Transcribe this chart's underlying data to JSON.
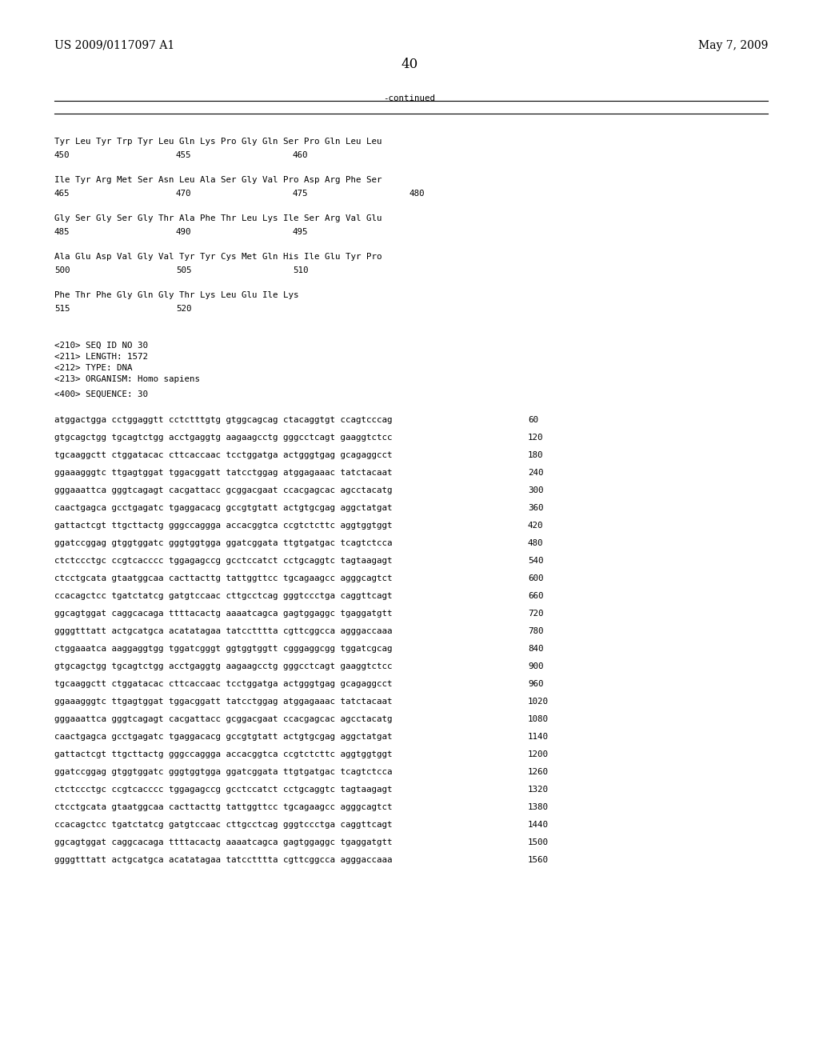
{
  "header_left": "US 2009/0117097 A1",
  "header_right": "May 7, 2009",
  "page_number": "40",
  "continued_label": "-continued",
  "background_color": "#ffffff",
  "text_color": "#000000",
  "font_size_header": 10.0,
  "font_size_body": 8.0,
  "font_size_mono": 7.8,
  "seq_info": [
    "<210> SEQ ID NO 30",
    "<211> LENGTH: 1572",
    "<212> TYPE: DNA",
    "<213> ORGANISM: Homo sapiens"
  ],
  "seq_label": "<400> SEQUENCE: 30",
  "dna_lines": [
    [
      "atggactgga cctggaggtt cctctttgtg gtggcagcag ctacaggtgt ccagtcccag",
      "60"
    ],
    [
      "gtgcagctgg tgcagtctgg acctgaggtg aagaagcctg gggcctcagt gaaggtctcc",
      "120"
    ],
    [
      "tgcaaggctt ctggatacac cttcaccaac tcctggatga actgggtgag gcagaggcct",
      "180"
    ],
    [
      "ggaaagggtc ttgagtggat tggacggatt tatcctggag atggagaaac tatctacaat",
      "240"
    ],
    [
      "gggaaattca gggtcagagt cacgattacc gcggacgaat ccacgagcac agcctacatg",
      "300"
    ],
    [
      "caactgagca gcctgagatc tgaggacacg gccgtgtatt actgtgcgag aggctatgat",
      "360"
    ],
    [
      "gattactcgt ttgcttactg gggccaggga accacggtca ccgtctcttc aggtggtggt",
      "420"
    ],
    [
      "ggatccggag gtggtggatc gggtggtgga ggatcggata ttgtgatgac tcagtctcca",
      "480"
    ],
    [
      "ctctccctgc ccgtcacccc tggagagccg gcctccatct cctgcaggtc tagtaagagt",
      "540"
    ],
    [
      "ctcctgcata gtaatggcaa cacttacttg tattggttcc tgcagaagcc agggcagtct",
      "600"
    ],
    [
      "ccacagctcc tgatctatcg gatgtccaac cttgcctcag gggtccctga caggttcagt",
      "660"
    ],
    [
      "ggcagtggat caggcacaga ttttacactg aaaatcagca gagtggaggc tgaggatgtt",
      "720"
    ],
    [
      "ggggtttatt actgcatgca acatatagaa tatcctttta cgttcggcca agggaccaaa",
      "780"
    ],
    [
      "ctggaaatca aaggaggtgg tggatcgggt ggtggtggtt cgggaggcgg tggatcgcag",
      "840"
    ],
    [
      "gtgcagctgg tgcagtctgg acctgaggtg aagaagcctg gggcctcagt gaaggtctcc",
      "900"
    ],
    [
      "tgcaaggctt ctggatacac cttcaccaac tcctggatga actgggtgag gcagaggcct",
      "960"
    ],
    [
      "ggaaagggtc ttgagtggat tggacggatt tatcctggag atggagaaac tatctacaat",
      "1020"
    ],
    [
      "gggaaattca gggtcagagt cacgattacc gcggacgaat ccacgagcac agcctacatg",
      "1080"
    ],
    [
      "caactgagca gcctgagatc tgaggacacg gccgtgtatt actgtgcgag aggctatgat",
      "1140"
    ],
    [
      "gattactcgt ttgcttactg gggccaggga accacggtca ccgtctcttc aggtggtggt",
      "1200"
    ],
    [
      "ggatccggag gtggtggatc gggtggtgga ggatcggata ttgtgatgac tcagtctcca",
      "1260"
    ],
    [
      "ctctccctgc ccgtcacccc tggagagccg gcctccatct cctgcaggtc tagtaagagt",
      "1320"
    ],
    [
      "ctcctgcata gtaatggcaa cacttacttg tattggttcc tgcagaagcc agggcagtct",
      "1380"
    ],
    [
      "ccacagctcc tgatctatcg gatgtccaac cttgcctcag gggtccctga caggttcagt",
      "1440"
    ],
    [
      "ggcagtggat caggcacaga ttttacactg aaaatcagca gagtggaggc tgaggatgtt",
      "1500"
    ],
    [
      "ggggtttatt actgcatgca acatatagaa tatcctttta cgttcggcca agggaccaaa",
      "1560"
    ]
  ]
}
